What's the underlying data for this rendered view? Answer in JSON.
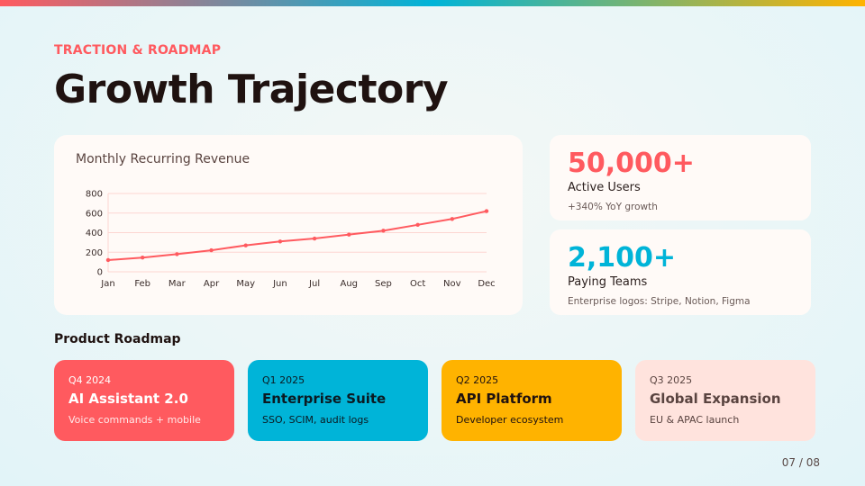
{
  "header": {
    "eyebrow": "TRACTION & ROADMAP",
    "title": "Growth Trajectory"
  },
  "colors": {
    "accent": "#ff5a5f",
    "teal": "#00b4d8",
    "amber": "#ffb300",
    "peach": "#ffe3dd"
  },
  "chart_data": {
    "type": "line",
    "title": "Monthly Recurring Revenue",
    "categories": [
      "Jan",
      "Feb",
      "Mar",
      "Apr",
      "May",
      "Jun",
      "Jul",
      "Aug",
      "Sep",
      "Oct",
      "Nov",
      "Dec"
    ],
    "values": [
      120,
      145,
      180,
      220,
      270,
      310,
      340,
      380,
      420,
      480,
      540,
      620
    ],
    "yticks": [
      0,
      200,
      400,
      600,
      800
    ],
    "ylim": [
      0,
      800
    ],
    "grid": true,
    "color": "#ff5a5f"
  },
  "stats": [
    {
      "value": "50,000+",
      "label": "Active Users",
      "sub": "+340% YoY growth",
      "color": "#ff5a5f"
    },
    {
      "value": "2,100+",
      "label": "Paying Teams",
      "sub": "Enterprise logos: Stripe, Notion, Figma",
      "color": "#00b4d8"
    }
  ],
  "roadmap": {
    "title": "Product Roadmap",
    "items": [
      {
        "quarter": "Q4 2024",
        "name": "AI Assistant 2.0",
        "desc": "Voice commands + mobile"
      },
      {
        "quarter": "Q1 2025",
        "name": "Enterprise Suite",
        "desc": "SSO, SCIM, audit logs"
      },
      {
        "quarter": "Q2 2025",
        "name": "API Platform",
        "desc": "Developer ecosystem"
      },
      {
        "quarter": "Q3 2025",
        "name": "Global Expansion",
        "desc": "EU & APAC launch"
      }
    ]
  },
  "page": "07 / 08"
}
